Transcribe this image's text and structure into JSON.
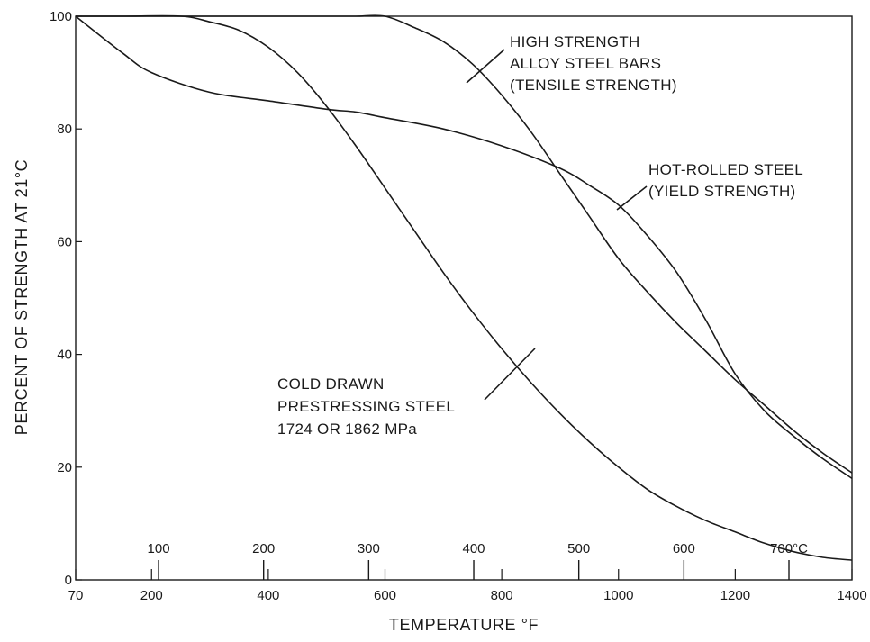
{
  "chart_data": {
    "type": "line",
    "title": "",
    "xlabel": "TEMPERATURE °F",
    "ylabel": "PERCENT OF STRENGTH AT 21°C",
    "xlim": [
      70,
      1400
    ],
    "ylim": [
      0,
      100
    ],
    "grid": false,
    "legend": "none",
    "x_ticks": [
      {
        "value": 70,
        "label": "70"
      },
      {
        "value": 200,
        "label": "200"
      },
      {
        "value": 400,
        "label": "400"
      },
      {
        "value": 600,
        "label": "600"
      },
      {
        "value": 800,
        "label": "800"
      },
      {
        "value": 1000,
        "label": "1000"
      },
      {
        "value": 1200,
        "label": "1200"
      },
      {
        "value": 1400,
        "label": "1400"
      }
    ],
    "y_ticks": [
      {
        "value": 0,
        "label": "0"
      },
      {
        "value": 20,
        "label": "20"
      },
      {
        "value": 40,
        "label": "40"
      },
      {
        "value": 60,
        "label": "60"
      },
      {
        "value": 80,
        "label": "80"
      },
      {
        "value": 100,
        "label": "100"
      }
    ],
    "celsius_ticks": [
      {
        "value": 212,
        "label": "100"
      },
      {
        "value": 392,
        "label": "200"
      },
      {
        "value": 572,
        "label": "300"
      },
      {
        "value": 752,
        "label": "400"
      },
      {
        "value": 932,
        "label": "500"
      },
      {
        "value": 1112,
        "label": "600"
      },
      {
        "value": 1292,
        "label": "700°C"
      }
    ],
    "series": [
      {
        "id": "high-strength-alloy",
        "x": [
          70,
          150,
          200,
          250,
          300,
          350,
          400,
          450,
          500,
          550,
          600,
          650,
          700,
          750,
          800,
          850,
          900,
          950,
          1000,
          1050,
          1100,
          1150,
          1200,
          1250,
          1300,
          1350,
          1400
        ],
        "y": [
          100,
          100,
          100,
          100,
          100,
          100,
          100,
          100,
          100,
          100,
          100,
          98,
          95.5,
          91.5,
          86,
          79.5,
          72,
          64.5,
          57,
          51,
          45.5,
          40.5,
          35.5,
          31,
          26.5,
          22.5,
          19
        ]
      },
      {
        "id": "hot-rolled",
        "x": [
          70,
          150,
          200,
          300,
          400,
          500,
          550,
          600,
          700,
          800,
          900,
          950,
          1000,
          1050,
          1100,
          1150,
          1200,
          1250,
          1300,
          1350,
          1400
        ],
        "y": [
          100,
          93.5,
          90,
          86.5,
          85,
          83.5,
          83,
          82,
          80,
          77,
          73,
          70,
          66.5,
          61,
          54.5,
          46,
          36.5,
          30,
          25.5,
          21.5,
          18
        ]
      },
      {
        "id": "cold-drawn",
        "x": [
          70,
          150,
          250,
          300,
          350,
          400,
          450,
          500,
          550,
          600,
          650,
          700,
          750,
          800,
          850,
          900,
          950,
          1000,
          1050,
          1100,
          1150,
          1200,
          1250,
          1300,
          1350,
          1400
        ],
        "y": [
          100,
          100,
          100,
          99,
          97.5,
          94.5,
          90,
          84,
          77,
          69.5,
          62,
          54.5,
          47.5,
          41,
          35,
          29.5,
          24.5,
          20,
          16,
          13,
          10.5,
          8.5,
          6.5,
          5,
          4,
          3.5
        ]
      }
    ],
    "annotations": [
      {
        "id": "alloy",
        "lines": [
          "HIGH STRENGTH",
          "ALLOY STEEL BARS",
          "(TENSILE STRENGTH)"
        ]
      },
      {
        "id": "hot",
        "lines": [
          "HOT-ROLLED STEEL",
          "(YIELD STRENGTH)"
        ]
      },
      {
        "id": "cold",
        "lines": [
          "COLD DRAWN",
          "PRESTRESSING STEEL",
          "1724 OR 1862 MPa"
        ]
      }
    ]
  }
}
